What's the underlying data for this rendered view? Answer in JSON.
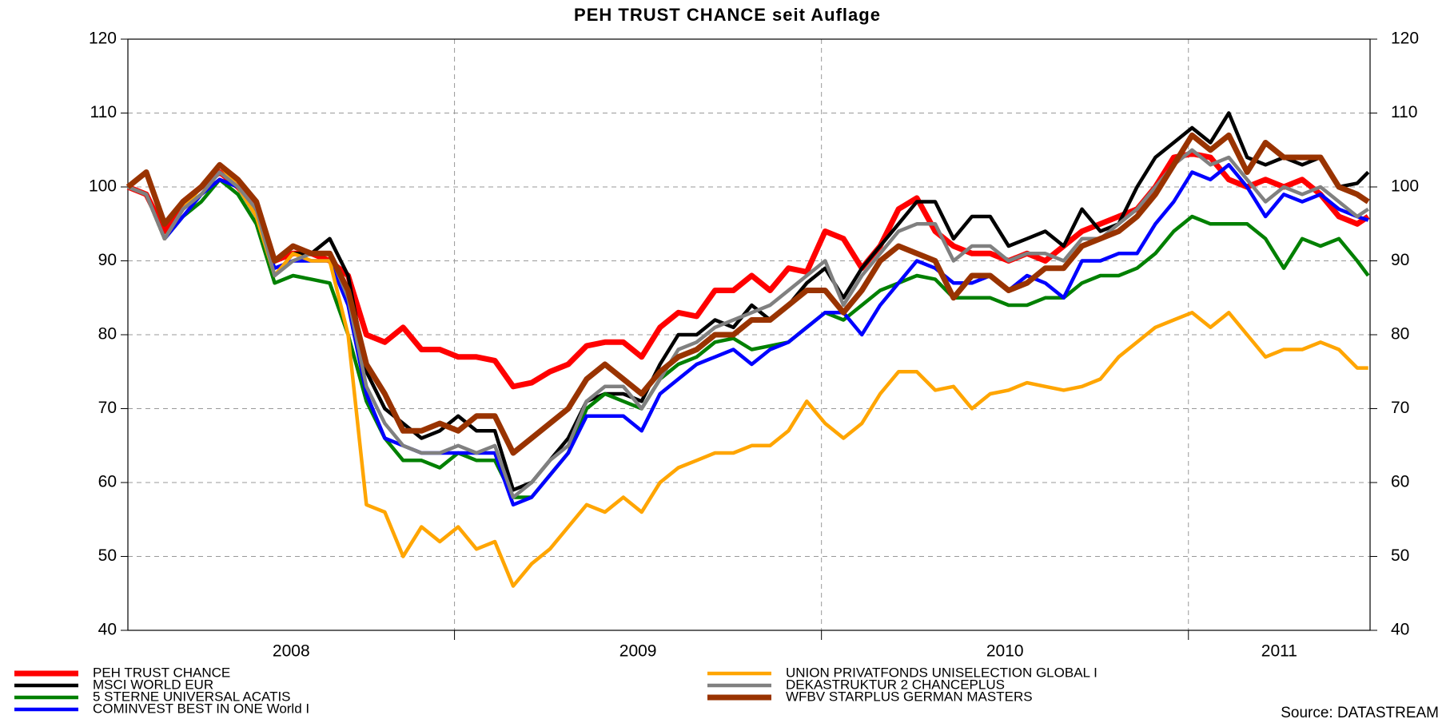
{
  "chart_data": {
    "type": "line",
    "title": "PEH TRUST CHANCE seit Auflage",
    "source": "Source: DATASTREAM",
    "x": [
      2008.11,
      2008.16,
      2008.21,
      2008.26,
      2008.31,
      2008.36,
      2008.41,
      2008.46,
      2008.51,
      2008.56,
      2008.61,
      2008.66,
      2008.71,
      2008.76,
      2008.81,
      2008.86,
      2008.91,
      2008.96,
      2009.01,
      2009.06,
      2009.11,
      2009.16,
      2009.21,
      2009.26,
      2009.31,
      2009.36,
      2009.41,
      2009.46,
      2009.51,
      2009.56,
      2009.61,
      2009.66,
      2009.71,
      2009.76,
      2009.81,
      2009.86,
      2009.91,
      2009.96,
      2010.01,
      2010.06,
      2010.11,
      2010.16,
      2010.21,
      2010.26,
      2010.31,
      2010.36,
      2010.41,
      2010.46,
      2010.51,
      2010.56,
      2010.61,
      2010.66,
      2010.71,
      2010.76,
      2010.81,
      2010.86,
      2010.91,
      2010.96,
      2011.01,
      2011.06,
      2011.11,
      2011.16,
      2011.21,
      2011.26,
      2011.31,
      2011.36,
      2011.41,
      2011.46,
      2011.49
    ],
    "xlim": [
      2008.11,
      2011.495
    ],
    "xticks": [
      2008,
      2009,
      2010,
      2011
    ],
    "ylim": [
      40,
      120
    ],
    "yticks": [
      40,
      50,
      60,
      70,
      80,
      90,
      100,
      110,
      120
    ],
    "grid": true,
    "mirror_y_axis": true,
    "series": [
      {
        "name": "PEH TRUST CHANCE",
        "color": "#ff0000",
        "width": 7,
        "values": [
          100,
          99,
          94,
          98,
          100,
          102,
          100,
          97,
          90,
          91,
          91,
          90,
          88,
          80,
          79,
          81,
          78,
          78,
          77,
          77,
          76.5,
          73,
          73.5,
          75,
          76,
          78.5,
          79,
          79,
          77,
          81,
          83,
          82.5,
          86,
          86,
          88,
          86,
          89,
          88.5,
          94,
          93,
          89,
          92,
          97,
          98.5,
          94,
          92,
          91,
          91,
          90,
          91,
          90,
          92,
          94,
          95,
          96,
          97,
          100,
          104,
          104.5,
          104,
          101,
          100,
          101,
          100,
          101,
          99,
          96,
          95,
          96
        ]
      },
      {
        "name": "MSCI WORLD EUR",
        "color": "#000000",
        "width": 4.5,
        "values": [
          100,
          99,
          93,
          97,
          99,
          101,
          100,
          96,
          88,
          91,
          91,
          93,
          88,
          75,
          70,
          68,
          66,
          67,
          69,
          67,
          67,
          59,
          60,
          63,
          66,
          71,
          72,
          72,
          71,
          76,
          80,
          80,
          82,
          81,
          84,
          82,
          84,
          87,
          89,
          85,
          89,
          92,
          95,
          98,
          98,
          93,
          96,
          96,
          92,
          93,
          94,
          92,
          97,
          94,
          95,
          100,
          104,
          106,
          108,
          106,
          110,
          104,
          103,
          104,
          103,
          104,
          100,
          100.5,
          102
        ]
      },
      {
        "name": "5 STERNE UNIVERSAL ACATIS",
        "color": "#008000",
        "width": 4.5,
        "values": [
          100,
          99,
          93,
          96,
          98,
          101,
          99,
          95,
          87,
          88,
          87.5,
          87,
          80,
          71,
          66,
          63,
          63,
          62,
          64,
          63,
          63,
          58,
          58,
          61,
          64,
          70,
          72,
          71,
          70,
          74,
          76,
          77,
          79,
          79.5,
          78,
          78.5,
          79,
          81,
          83,
          82,
          84,
          86,
          87,
          88,
          87.5,
          85,
          85,
          85,
          84,
          84,
          85,
          85,
          87,
          88,
          88,
          89,
          91,
          94,
          96,
          95,
          95,
          95,
          93,
          89,
          93,
          92,
          93,
          90,
          88
        ]
      },
      {
        "name": "COMINVEST BEST IN  ONE World I",
        "color": "#0000ff",
        "width": 4.5,
        "values": [
          100,
          99,
          93,
          96,
          99,
          101,
          100,
          96,
          89,
          90,
          90,
          90,
          84,
          72,
          66,
          65,
          64,
          64,
          64,
          64,
          64,
          57,
          58,
          61,
          64,
          69,
          69,
          69,
          67,
          72,
          74,
          76,
          77,
          78,
          76,
          78,
          79,
          81,
          83,
          83,
          80,
          84,
          87,
          90,
          89,
          87,
          87,
          88,
          86,
          88,
          87,
          85,
          90,
          90,
          91,
          91,
          95,
          98,
          102,
          101,
          103,
          100,
          96,
          99,
          98,
          99,
          97,
          96,
          95.5
        ]
      },
      {
        "name": "UNION PRIVATFONDS UNISELECTION GLOBAL I",
        "color": "#ffa500",
        "width": 4.5,
        "values": [
          100,
          99,
          93,
          97,
          100,
          103,
          100,
          96,
          88,
          91,
          90,
          90,
          80,
          57,
          56,
          50,
          54,
          52,
          54,
          51,
          52,
          46,
          49,
          51,
          54,
          57,
          56,
          58,
          56,
          60,
          62,
          63,
          64,
          64,
          65,
          65,
          67,
          71,
          68,
          66,
          68,
          72,
          75,
          75,
          72.5,
          73,
          70,
          72,
          72.5,
          73.5,
          73,
          72.5,
          73,
          74,
          77,
          79,
          81,
          82,
          83,
          81,
          83,
          80,
          77,
          78,
          78,
          79,
          78,
          75.5,
          75.5
        ]
      },
      {
        "name": "DEKASTRUKTUR 2 CHANCEPLUS",
        "color": "#808080",
        "width": 4.5,
        "values": [
          100,
          99,
          93,
          97,
          99,
          102,
          100,
          97,
          88,
          90,
          91,
          91,
          85,
          73,
          68,
          65,
          64,
          64,
          65,
          64,
          65,
          58,
          60,
          63,
          65,
          71,
          73,
          73,
          70,
          74,
          78,
          79,
          81,
          82,
          83,
          84,
          86,
          88,
          90,
          84,
          88,
          91,
          94,
          95,
          95,
          90,
          92,
          92,
          90,
          91,
          91,
          90,
          93,
          93,
          95,
          97,
          100,
          103,
          105,
          103,
          104,
          101,
          98,
          100,
          99,
          100,
          98,
          96,
          97
        ]
      },
      {
        "name": "WFBV STARPLUS GERMAN MASTERS",
        "color": "#993300",
        "width": 7,
        "values": [
          100,
          102,
          95,
          98,
          100,
          103,
          101,
          98,
          90,
          92,
          91,
          91,
          86,
          76,
          72,
          67,
          67,
          68,
          67,
          69,
          69,
          64,
          66,
          68,
          70,
          74,
          76,
          74,
          72,
          75,
          77,
          78,
          80,
          80,
          82,
          82,
          84,
          86,
          86,
          83,
          86,
          90,
          92,
          91,
          90,
          85,
          88,
          88,
          86,
          87,
          89,
          89,
          92,
          93,
          94,
          96,
          99,
          103,
          107,
          105,
          107,
          102,
          106,
          104,
          104,
          104,
          100,
          99,
          98
        ]
      }
    ]
  }
}
